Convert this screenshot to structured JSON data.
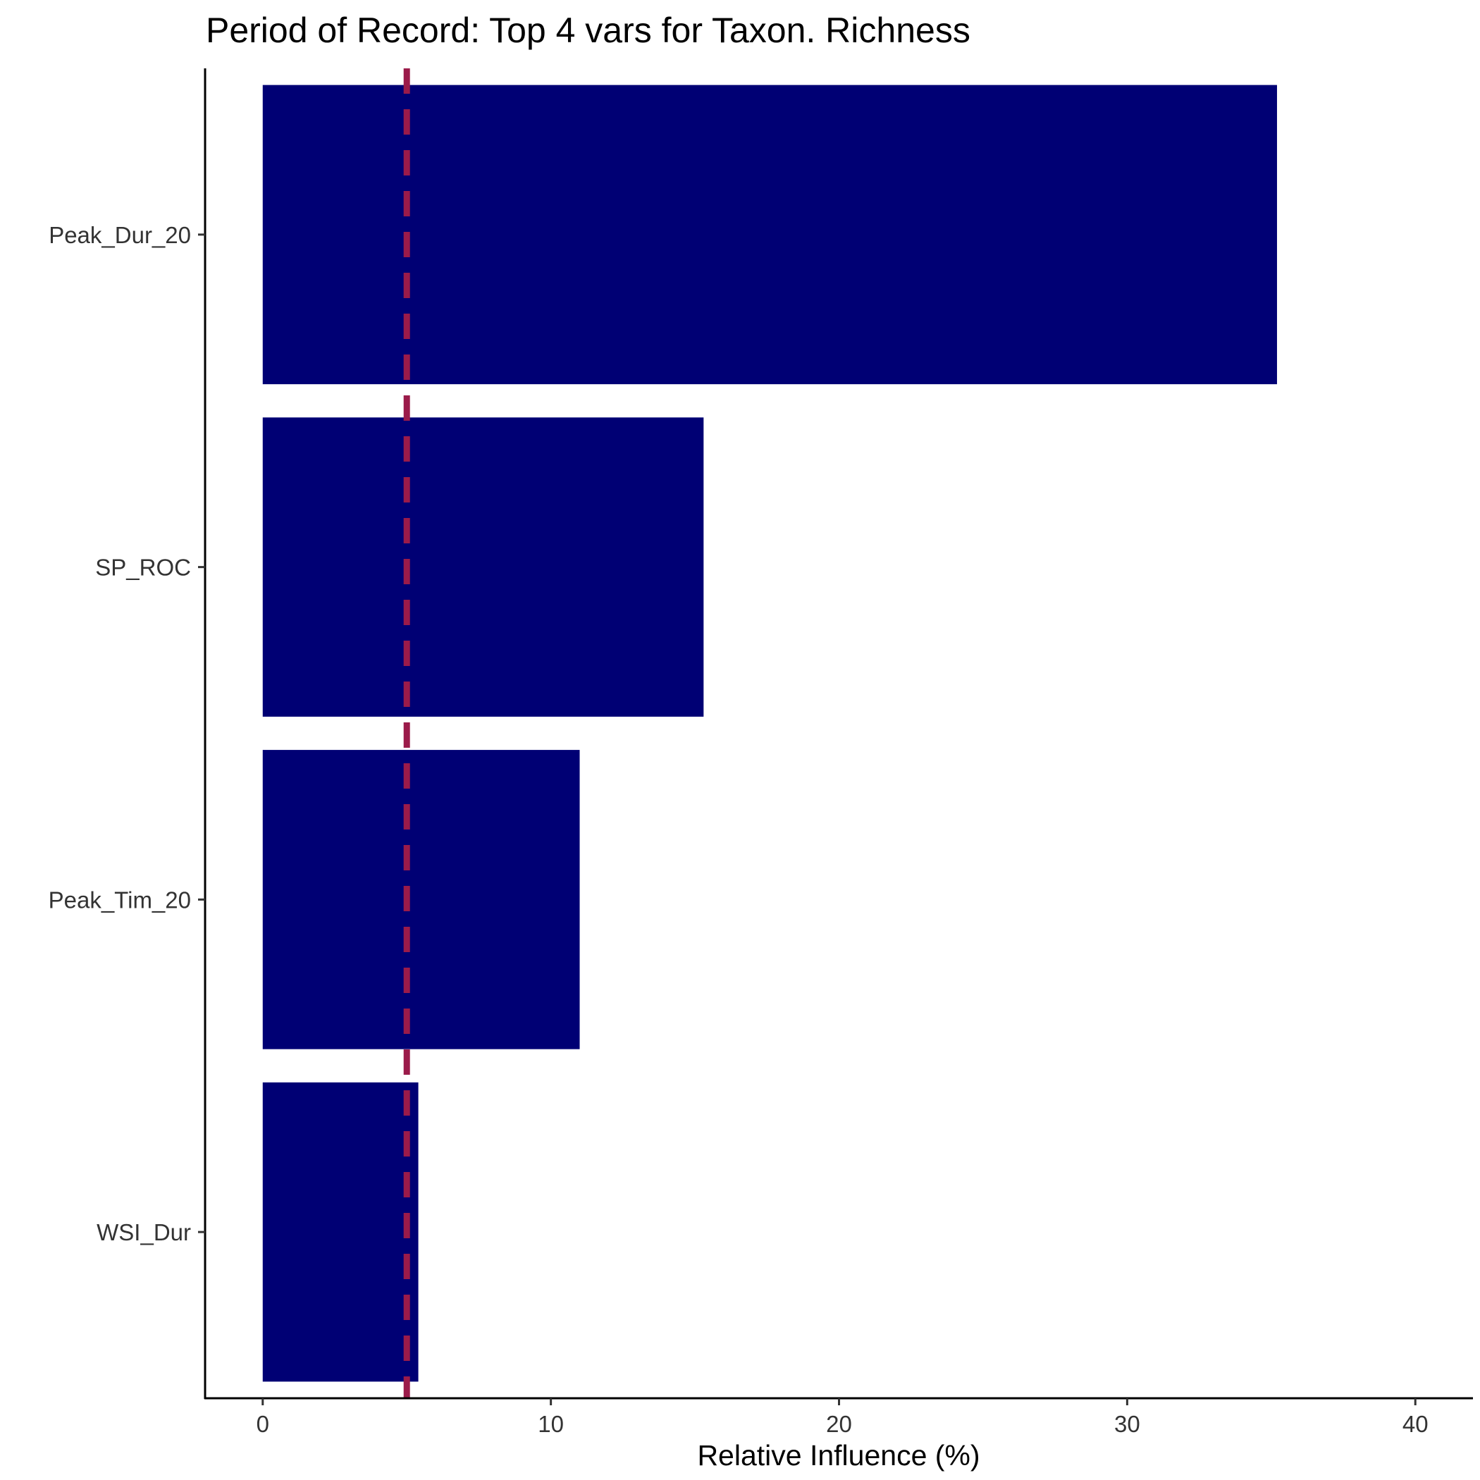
{
  "chart_data": {
    "type": "bar",
    "orientation": "horizontal",
    "title": "Period of Record: Top 4 vars for Taxon. Richness",
    "xlabel": "Relative Influence (%)",
    "ylabel": "",
    "categories": [
      "Peak_Dur_20",
      "SP_ROC",
      "Peak_Tim_20",
      "WSI_Dur"
    ],
    "values": [
      35.2,
      15.3,
      11.0,
      5.4
    ],
    "xlim": [
      -2,
      42
    ],
    "xticks": [
      0,
      10,
      20,
      30,
      40
    ],
    "reference_line": {
      "value": 5,
      "style": "dashed",
      "color": "#9b1b4a"
    },
    "bar_color": "#000074",
    "grid": false,
    "legend": "none"
  }
}
